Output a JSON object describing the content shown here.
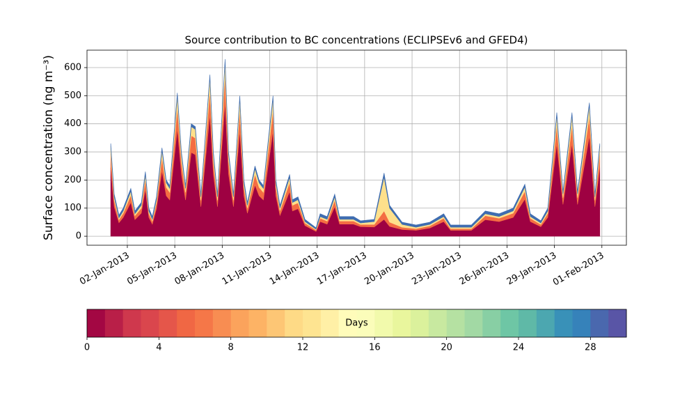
{
  "chart_data": {
    "type": "stacked_area",
    "title": "Source contribution to BC concentrations (ECLIPSEv6 and GFED4)",
    "ylabel": "Surface concentration (ng m⁻³)",
    "x": [
      0.95,
      1.17,
      1.47,
      1.74,
      2.22,
      2.48,
      2.88,
      3.14,
      3.36,
      3.58,
      3.84,
      4.19,
      4.46,
      4.68,
      5.16,
      5.42,
      5.68,
      6.04,
      6.3,
      6.65,
      7.22,
      7.44,
      7.7,
      8.18,
      8.4,
      8.71,
      9.11,
      9.37,
      9.59,
      10.07,
      10.33,
      10.6,
      11.21,
      11.39,
      11.65,
      12.26,
      12.44,
      12.79,
      13.23,
      13.93,
      14.19,
      14.63,
      15.11,
      15.42,
      16.3,
      16.74,
      17.61,
      18.23,
      18.58,
      19.37,
      20.25,
      21.12,
      22.0,
      22.44,
      23.75,
      24.63,
      25.5,
      26.39,
      27.13,
      27.48,
      28.14,
      28.58,
      29.15,
      29.54,
      30.11,
      30.46,
      31.21,
      31.56,
      31.87
    ],
    "series": [
      {
        "color": "#9e0142",
        "values": [
          244,
          105,
          48,
          67,
          120,
          59,
          82,
          167,
          67,
          43,
          98,
          233,
          144,
          129,
          382,
          221,
          129,
          298,
          290,
          105,
          433,
          221,
          105,
          475,
          221,
          105,
          375,
          144,
          82,
          182,
          144,
          129,
          375,
          144,
          74,
          159,
          90,
          98,
          38,
          17,
          52,
          43,
          105,
          43,
          43,
          34,
          33,
          60,
          35,
          24,
          21,
          29,
          52,
          21,
          21,
          59,
          52,
          67,
          132,
          52,
          34,
          67,
          329,
          113,
          329,
          113,
          356,
          105,
          244
        ]
      },
      {
        "color": "#f46d43",
        "values": [
          50,
          23,
          11,
          15,
          26,
          14,
          18,
          35,
          15,
          11,
          21,
          47,
          30,
          27,
          77,
          45,
          27,
          60,
          59,
          23,
          86,
          45,
          23,
          95,
          45,
          23,
          75,
          30,
          18,
          38,
          30,
          27,
          75,
          30,
          17,
          33,
          20,
          21,
          9,
          5,
          12,
          11,
          23,
          11,
          11,
          8,
          9,
          30,
          15,
          8,
          6,
          8,
          12,
          6,
          6,
          14,
          12,
          15,
          28,
          12,
          8,
          15,
          66,
          24,
          66,
          24,
          71,
          23,
          50
        ]
      },
      {
        "color": "#fee08b",
        "values": [
          26,
          12,
          6,
          8,
          14,
          7,
          10,
          18,
          8,
          6,
          11,
          25,
          16,
          14,
          41,
          24,
          14,
          32,
          31,
          12,
          46,
          24,
          12,
          50,
          24,
          12,
          40,
          16,
          10,
          20,
          16,
          14,
          40,
          16,
          9,
          18,
          10,
          11,
          5,
          3,
          6,
          6,
          12,
          6,
          6,
          5,
          10,
          120,
          50,
          10,
          5,
          5,
          6,
          5,
          5,
          7,
          6,
          8,
          15,
          6,
          5,
          8,
          35,
          13,
          35,
          13,
          38,
          12,
          26
        ]
      },
      {
        "color": "#3f6db0",
        "values": [
          10,
          10,
          10,
          10,
          10,
          10,
          10,
          10,
          10,
          10,
          10,
          10,
          10,
          10,
          10,
          10,
          10,
          10,
          10,
          10,
          10,
          10,
          10,
          10,
          10,
          10,
          10,
          10,
          10,
          10,
          10,
          10,
          10,
          10,
          10,
          10,
          10,
          10,
          8,
          5,
          10,
          10,
          10,
          10,
          10,
          8,
          8,
          15,
          10,
          8,
          8,
          8,
          10,
          8,
          8,
          10,
          10,
          10,
          10,
          10,
          8,
          10,
          10,
          10,
          10,
          10,
          10,
          10,
          10
        ]
      }
    ],
    "xlim": [
      -0.55,
      33.55
    ],
    "xticks": [
      {
        "value": 2,
        "label": "02-Jan-2013"
      },
      {
        "value": 5,
        "label": "05-Jan-2013"
      },
      {
        "value": 8,
        "label": "08-Jan-2013"
      },
      {
        "value": 11,
        "label": "11-Jan-2013"
      },
      {
        "value": 14,
        "label": "14-Jan-2013"
      },
      {
        "value": 17,
        "label": "17-Jan-2013"
      },
      {
        "value": 20,
        "label": "20-Jan-2013"
      },
      {
        "value": 23,
        "label": "23-Jan-2013"
      },
      {
        "value": 26,
        "label": "26-Jan-2013"
      },
      {
        "value": 29,
        "label": "29-Jan-2013"
      },
      {
        "value": 32,
        "label": "01-Feb-2013"
      }
    ],
    "ylim": [
      -32,
      662
    ],
    "yticks": [
      0,
      100,
      200,
      300,
      400,
      500,
      600
    ],
    "grid": true,
    "colorbar": {
      "label": "Days",
      "lim": [
        0,
        30
      ],
      "ticks": [
        0,
        4,
        8,
        12,
        16,
        20,
        24,
        28
      ],
      "colors": [
        "#a30743",
        "#b91f48",
        "#cf384d",
        "#da464d",
        "#e5564a",
        "#f06744",
        "#f57748",
        "#f88d52",
        "#fba35c",
        "#fdb365",
        "#fdc675",
        "#feda86",
        "#fee491",
        "#fff0a6",
        "#fffcba",
        "#fbfdba",
        "#f2faac",
        "#e9f69d",
        "#dbf19c",
        "#c8e9a0",
        "#b5e1a2",
        "#a2d9a4",
        "#88cfa4",
        "#6ec6a5",
        "#5fb9a7",
        "#4ca7b0",
        "#3991b8",
        "#3682ba",
        "#4a68ae",
        "#5955a6"
      ]
    }
  }
}
